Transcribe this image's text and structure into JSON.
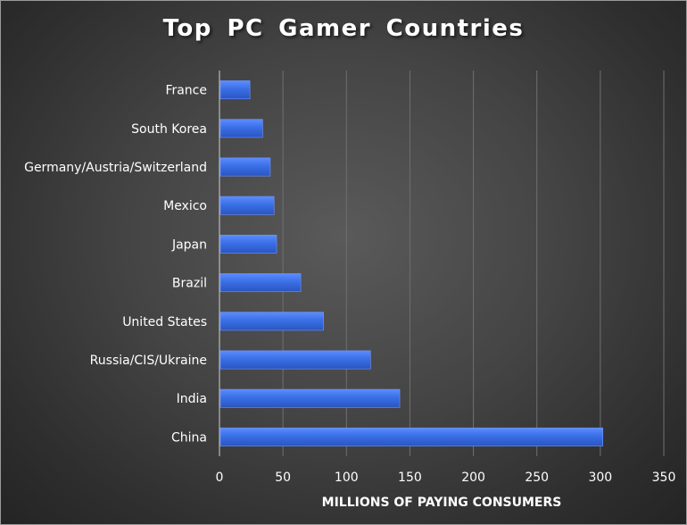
{
  "chart_data": {
    "type": "bar",
    "orientation": "horizontal",
    "title": "Top PC Gamer Countries",
    "xlabel": "MILLIONS OF PAYING CONSUMERS",
    "ylabel": "",
    "xlim": [
      0,
      350
    ],
    "xticks": [
      0,
      50,
      100,
      150,
      200,
      250,
      300,
      350
    ],
    "grid": "vertical",
    "categories": [
      "France",
      "South Korea",
      "Germany/Austria/Switzerland",
      "Mexico",
      "Japan",
      "Brazil",
      "United States",
      "Russia/CIS/Ukraine",
      "India",
      "China"
    ],
    "values": [
      24,
      34,
      40,
      43,
      45,
      64,
      82,
      119,
      142,
      302
    ],
    "bar_color": "#3a6fe6"
  }
}
